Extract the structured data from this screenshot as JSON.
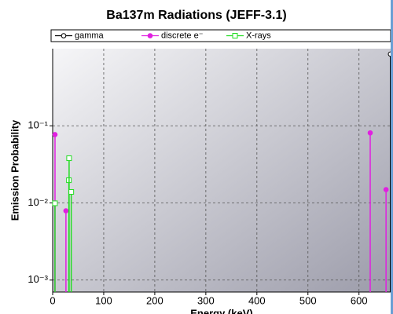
{
  "chart_data": {
    "type": "stem",
    "title": "Ba137m Radiations (JEFF-3.1)",
    "x_label": "Energy (keV)",
    "y_label": "Emission Probability",
    "log_y": true,
    "grid": true,
    "xlim": [
      0,
      662
    ],
    "ylim": [
      0.0007,
      1
    ],
    "xticks": [
      0,
      100,
      200,
      300,
      400,
      500,
      600
    ],
    "yticks": [
      {
        "value": 0.001,
        "label": "10⁻³"
      },
      {
        "value": 0.01,
        "label": "10⁻²"
      },
      {
        "value": 0.1,
        "label": "10⁻¹"
      }
    ],
    "series": [
      {
        "name": "gamma",
        "color": "#000000",
        "marker": "open-circle",
        "x": [
          661.7
        ],
        "values": [
          0.85
        ]
      },
      {
        "name": "discrete e⁻",
        "color": "#e020e0",
        "marker": "filled-circle",
        "x": [
          4.6,
          26,
          622,
          653
        ],
        "values": [
          0.077,
          0.0079,
          0.081,
          0.0149
        ]
      },
      {
        "name": "X-rays",
        "color": "#22dd22",
        "marker": "open-square",
        "x": [
          4.5,
          31.8,
          32.2,
          36.4
        ],
        "values": [
          0.0099,
          0.0197,
          0.038,
          0.0139
        ]
      }
    ]
  }
}
